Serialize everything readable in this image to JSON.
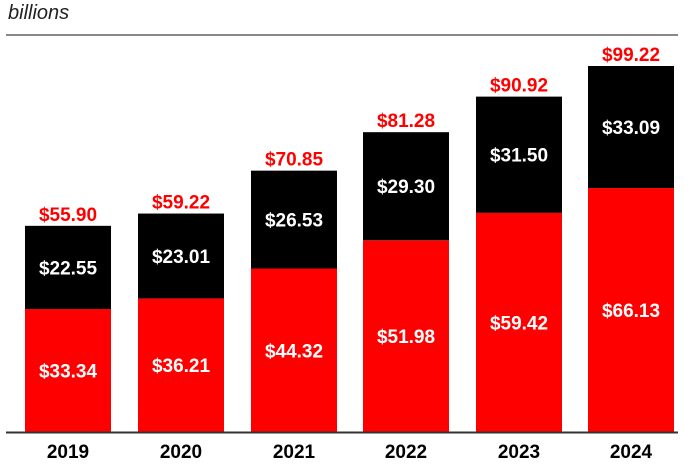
{
  "unit_label": "billions",
  "colors": {
    "bottom_segment": "#ff0000",
    "top_segment": "#000000",
    "total_label": "#ff0000",
    "axis": "#333333"
  },
  "chart_data": {
    "type": "bar",
    "stacked": true,
    "categories": [
      "2019",
      "2020",
      "2021",
      "2022",
      "2023",
      "2024"
    ],
    "series": [
      {
        "values": [
          33.34,
          36.21,
          44.32,
          51.98,
          59.42,
          66.13
        ]
      },
      {
        "values": [
          22.55,
          23.01,
          26.53,
          29.3,
          31.5,
          33.09
        ]
      }
    ],
    "segment_labels": [
      [
        "$33.34",
        "$36.21",
        "$44.32",
        "$51.98",
        "$59.42",
        "$66.13"
      ],
      [
        "$22.55",
        "$23.01",
        "$26.53",
        "$29.30",
        "$31.50",
        "$33.09"
      ]
    ],
    "totals": [
      55.9,
      59.22,
      70.85,
      81.28,
      90.92,
      99.22
    ],
    "total_labels": [
      "$55.90",
      "$59.22",
      "$70.85",
      "$81.28",
      "$90.92",
      "$99.22"
    ],
    "ylabel": "billions",
    "ylim": [
      0,
      99.22
    ],
    "grid": false,
    "legend": "none"
  }
}
